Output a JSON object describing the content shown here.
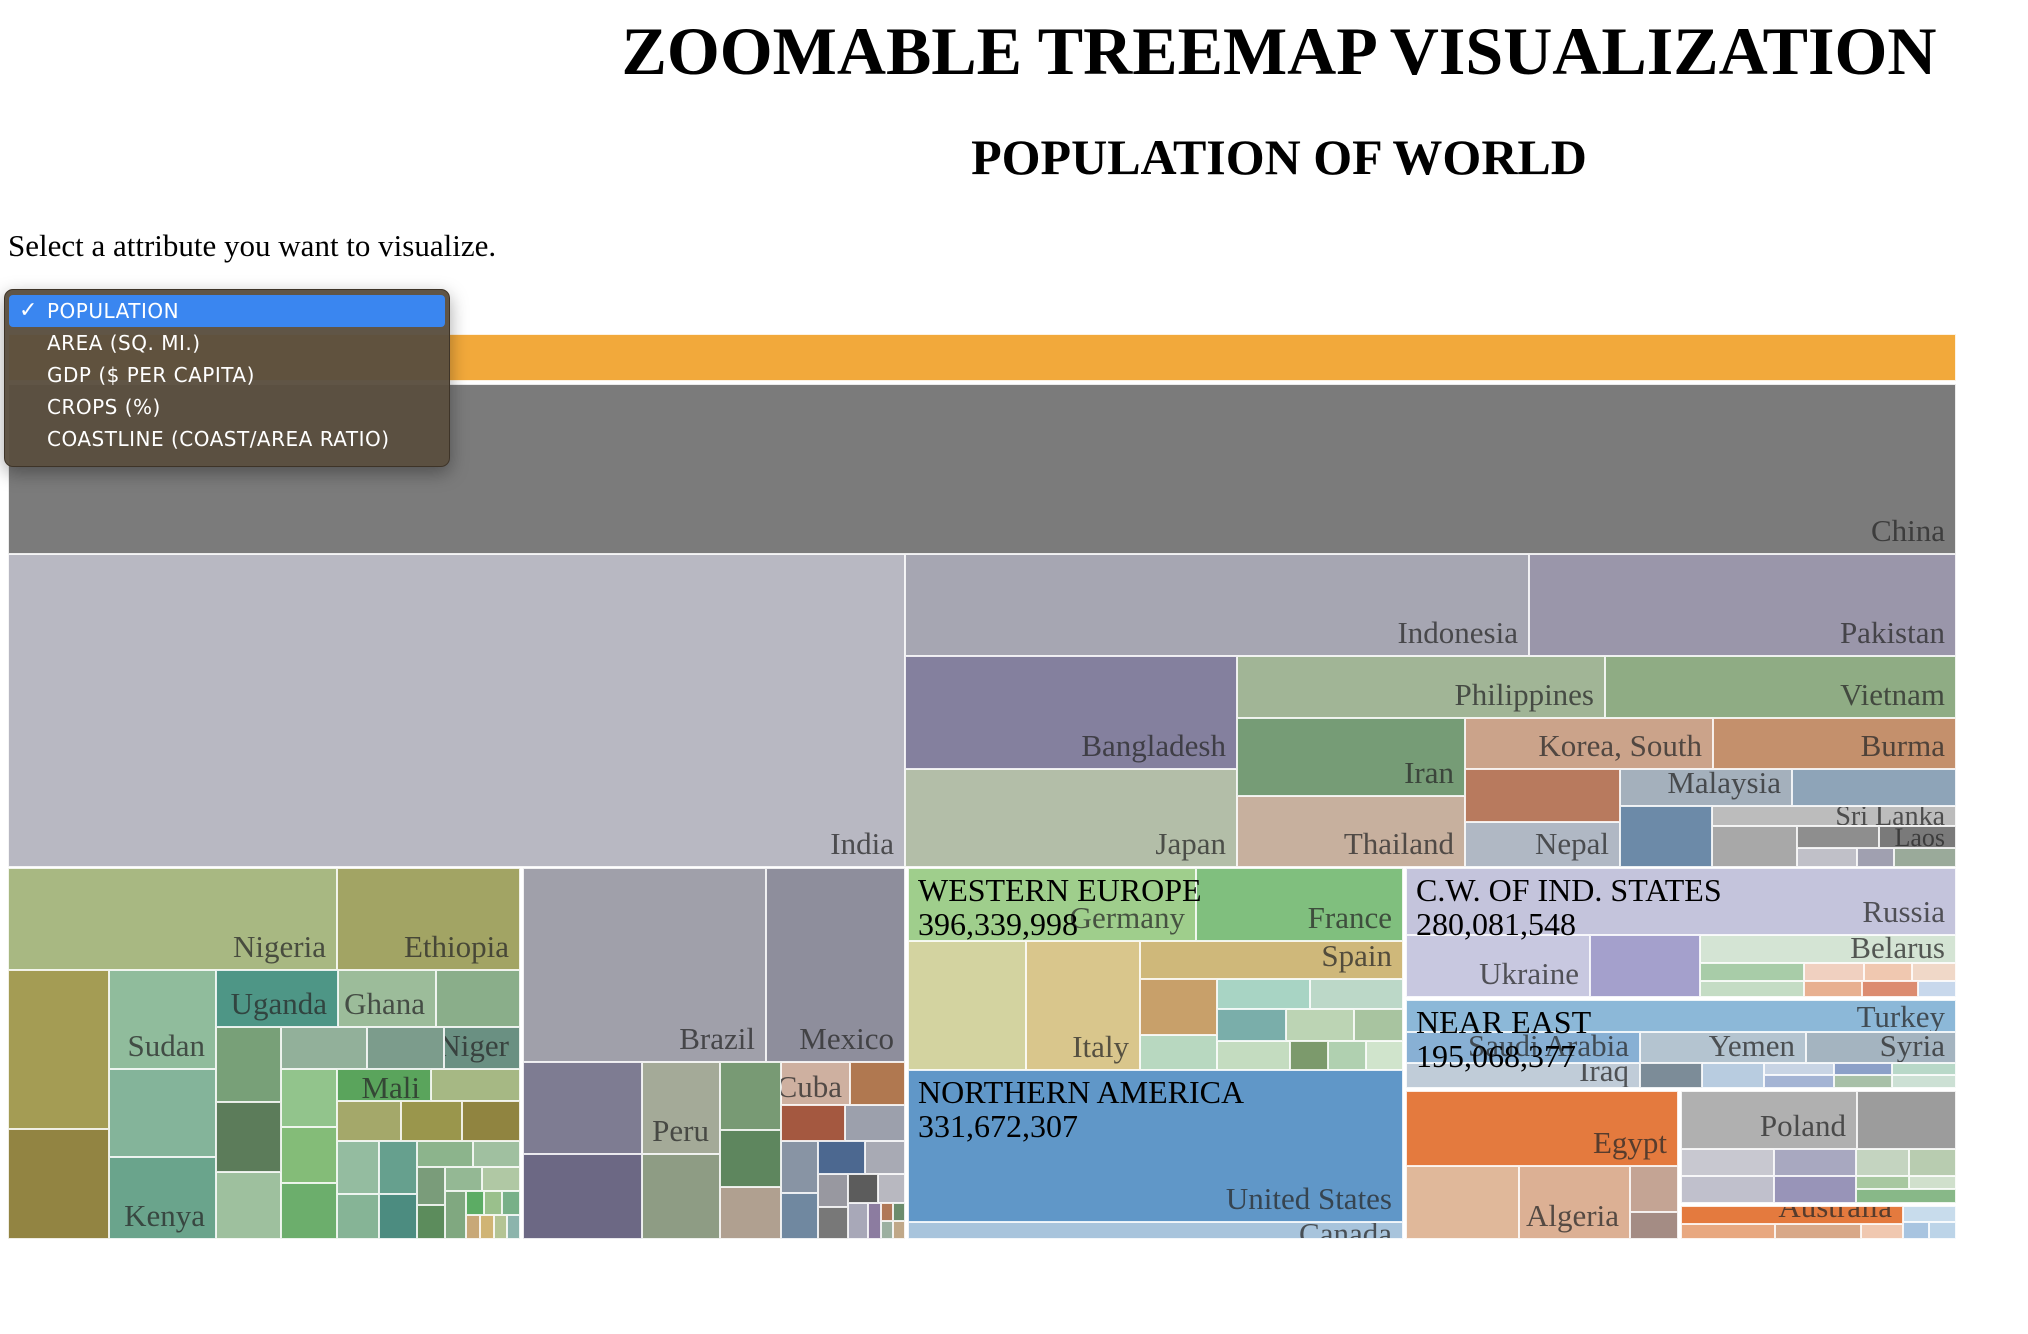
{
  "page": {
    "title": "ZOOMABLE TREEMAP VISUALIZATION",
    "subtitle": "POPULATION OF WORLD",
    "prompt": "Select a attribute you want to visualize."
  },
  "attribute_select": {
    "options": [
      {
        "label": "POPULATION",
        "selected": true
      },
      {
        "label": "AREA (SQ. MI.)",
        "selected": false
      },
      {
        "label": "GDP ($ PER CAPITA)",
        "selected": false
      },
      {
        "label": "CROPS (%)",
        "selected": false
      },
      {
        "label": "COASTLINE (COAST/AREA RATIO)",
        "selected": false
      }
    ],
    "check_glyph": "✓"
  },
  "colors": {
    "top_bar": "#f2a93b",
    "china": "#7b7b7b",
    "india": "#b8b8c2",
    "northern_america": "#6097c8",
    "egypt": "#e47a3e",
    "selected_option": "#3a86f0",
    "dropdown_bg": "#5a4e3e"
  },
  "treemap": {
    "countries": {
      "china": "China",
      "india": "India",
      "indonesia": "Indonesia",
      "pakistan": "Pakistan",
      "bangladesh": "Bangladesh",
      "philippines": "Philippines",
      "vietnam": "Vietnam",
      "japan": "Japan",
      "iran": "Iran",
      "korea_south": "Korea, South",
      "burma": "Burma",
      "thailand": "Thailand",
      "malaysia": "Malaysia",
      "nepal": "Nepal",
      "sri_lanka": "Sri Lanka",
      "laos": "Laos",
      "nigeria": "Nigeria",
      "ethiopia": "Ethiopia",
      "sudan": "Sudan",
      "uganda": "Uganda",
      "ghana": "Ghana",
      "niger": "Niger",
      "mali": "Mali",
      "kenya": "Kenya",
      "brazil": "Brazil",
      "mexico": "Mexico",
      "cuba": "Cuba",
      "peru": "Peru",
      "france": "France",
      "germany": "Germany",
      "spain": "Spain",
      "italy": "Italy",
      "united_states": "United States",
      "canada": "Canada",
      "russia": "Russia",
      "belarus": "Belarus",
      "ukraine": "Ukraine",
      "turkey": "Turkey",
      "saudi_arabia": "Saudi Arabia",
      "yemen": "Yemen",
      "syria": "Syria",
      "iraq": "Iraq",
      "egypt": "Egypt",
      "algeria": "Algeria",
      "poland": "Poland",
      "australia": "Australia"
    },
    "groups": {
      "western_europe": {
        "name": "WESTERN EUROPE",
        "value": "396,339,998"
      },
      "northern_america": {
        "name": "NORTHERN AMERICA",
        "value": "331,672,307"
      },
      "cw_ind_states": {
        "name": "C.W. OF IND. STATES",
        "value": "280,081,548"
      },
      "near_east": {
        "name": "NEAR EAST",
        "value": "195,068,377"
      }
    }
  }
}
